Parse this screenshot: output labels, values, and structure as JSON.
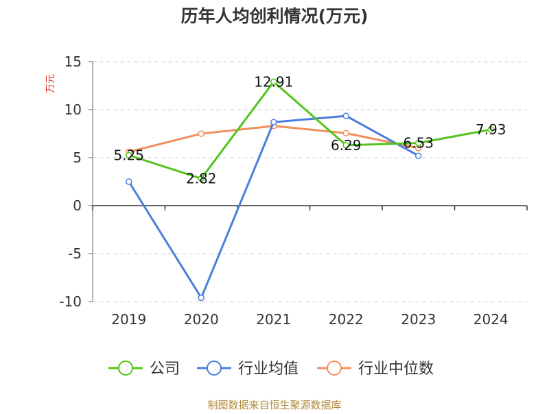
{
  "chart_data": {
    "type": "line",
    "title": "历年人均创利情况(万元)",
    "ylabel": "万元",
    "xlabel": "",
    "categories": [
      "2019",
      "2020",
      "2021",
      "2022",
      "2023",
      "2024"
    ],
    "ylim": [
      -10,
      15
    ],
    "yticks": [
      15,
      10,
      5,
      0,
      -5,
      -10
    ],
    "grid": true,
    "legend_position": "bottom",
    "series": [
      {
        "name": "公司",
        "color": "#52c41a",
        "values": [
          5.25,
          2.82,
          12.91,
          6.29,
          6.53,
          7.93
        ],
        "labels": [
          "5.25",
          "2.82",
          "12.91",
          "6.29",
          "6.53",
          "7.93"
        ]
      },
      {
        "name": "行业均值",
        "color": "#4a7ddb",
        "values": [
          2.5,
          -9.6,
          8.7,
          9.35,
          5.2,
          null
        ]
      },
      {
        "name": "行业中位数",
        "color": "#f28f5b",
        "values": [
          5.6,
          7.5,
          8.3,
          7.55,
          6.0,
          null
        ]
      }
    ]
  },
  "footer": {
    "source": "制图数据来自恒生聚源数据库"
  }
}
